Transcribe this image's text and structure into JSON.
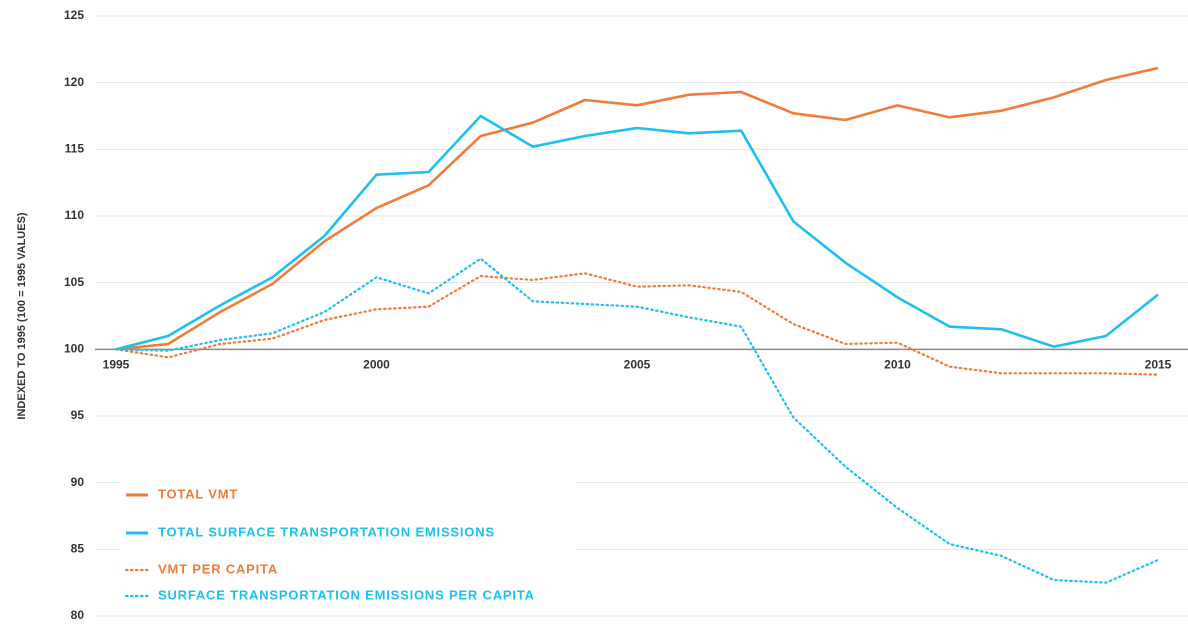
{
  "chart_data": {
    "type": "line",
    "y_label": "INDEXED TO 1995 (100 = 1995 VALUES)",
    "x": [
      1995,
      1996,
      1997,
      1998,
      1999,
      2000,
      2001,
      2002,
      2003,
      2004,
      2005,
      2006,
      2007,
      2008,
      2009,
      2010,
      2011,
      2012,
      2013,
      2014,
      2015
    ],
    "xlim": [
      1995,
      2015
    ],
    "xticks": [
      1995,
      2000,
      2005,
      2010,
      2015
    ],
    "ylim": [
      80,
      125
    ],
    "yticks": [
      80,
      85,
      90,
      95,
      100,
      105,
      110,
      115,
      120,
      125
    ],
    "x_axis_at": 100,
    "grid": true,
    "legend": "lower left",
    "series": [
      {
        "name": "TOTAL VMT",
        "color": "#f07c3a",
        "style": "solid",
        "values": [
          100,
          100.4,
          102.8,
          104.9,
          108.1,
          110.6,
          112.3,
          116.0,
          117.0,
          118.7,
          118.3,
          119.1,
          119.3,
          117.7,
          117.2,
          118.3,
          117.4,
          117.9,
          118.9,
          120.2,
          121.1
        ]
      },
      {
        "name": "TOTAL SURFACE TRANSPORTATION EMISSIONS",
        "color": "#1ec0ef",
        "style": "solid",
        "values": [
          100,
          101.0,
          103.3,
          105.4,
          108.5,
          113.1,
          113.3,
          117.5,
          115.2,
          116.0,
          116.6,
          116.2,
          116.4,
          109.6,
          106.5,
          103.9,
          101.7,
          101.5,
          100.2,
          101.0,
          104.1
        ]
      },
      {
        "name": "VMT PER CAPITA",
        "color": "#f07c3a",
        "style": "dotted",
        "values": [
          100,
          99.4,
          100.4,
          100.8,
          102.2,
          103.0,
          103.2,
          105.5,
          105.2,
          105.7,
          104.7,
          104.8,
          104.3,
          101.9,
          100.4,
          100.5,
          98.7,
          98.2,
          98.2,
          98.2,
          98.1
        ]
      },
      {
        "name": "SURFACE TRANSPORTATION EMISSIONS PER CAPITA",
        "color": "#1ec0ef",
        "style": "dotted",
        "values": [
          100,
          99.9,
          100.7,
          101.2,
          102.8,
          105.4,
          104.2,
          106.8,
          103.6,
          103.4,
          103.2,
          102.4,
          101.7,
          94.9,
          91.2,
          88.1,
          85.4,
          84.5,
          82.7,
          82.5,
          84.2
        ]
      }
    ]
  }
}
